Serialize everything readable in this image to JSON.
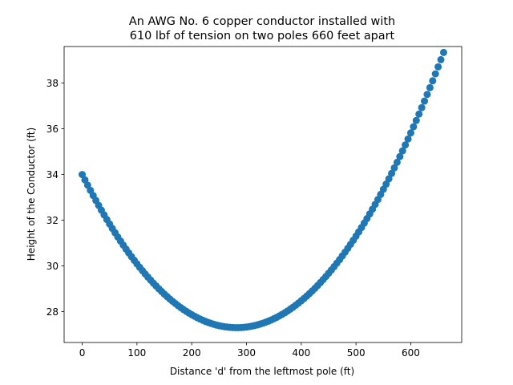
{
  "chart_data": {
    "type": "scatter",
    "title": [
      "An AWG No. 6 copper conductor installed with",
      "610 lbf of tension on two poles 660 feet apart"
    ],
    "xlabel": "Distance 'd' from the leftmost pole (ft)",
    "ylabel": "Height of the Conductor (ft)",
    "xlim": [
      -33,
      693
    ],
    "ylim": [
      26.65,
      39.6
    ],
    "xticks": [
      0,
      100,
      200,
      300,
      400,
      500,
      600
    ],
    "yticks": [
      28,
      30,
      32,
      34,
      36,
      38
    ],
    "grid": false,
    "legend": "none",
    "marker_color": "#1f77b4",
    "series": [
      {
        "curve": {
          "span_ft": 660,
          "start_height_ft": 34.0,
          "end_height_ft": 39.0,
          "min_height_ft": 27.3,
          "min_at_ft": 282
        },
        "x": [
          0,
          5,
          10,
          15,
          20,
          25,
          30,
          35,
          40,
          45,
          50,
          55,
          60,
          65,
          70,
          75,
          80,
          85,
          90,
          95,
          100,
          105,
          110,
          115,
          120,
          125,
          130,
          135,
          140,
          145,
          150,
          155,
          160,
          165,
          170,
          175,
          180,
          185,
          190,
          195,
          200,
          205,
          210,
          215,
          220,
          225,
          230,
          235,
          240,
          245,
          250,
          255,
          260,
          265,
          270,
          275,
          280,
          285,
          290,
          295,
          300,
          305,
          310,
          315,
          320,
          325,
          330,
          335,
          340,
          345,
          350,
          355,
          360,
          365,
          370,
          375,
          380,
          385,
          390,
          395,
          400,
          405,
          410,
          415,
          420,
          425,
          430,
          435,
          440,
          445,
          450,
          455,
          460,
          465,
          470,
          475,
          480,
          485,
          490,
          495,
          500,
          505,
          510,
          515,
          520,
          525,
          530,
          535,
          540,
          545,
          550,
          555,
          560,
          565,
          570,
          575,
          580,
          585,
          590,
          595,
          600,
          605,
          610,
          615,
          620,
          625,
          630,
          635,
          640,
          645,
          650,
          655,
          660
        ]
      }
    ]
  }
}
